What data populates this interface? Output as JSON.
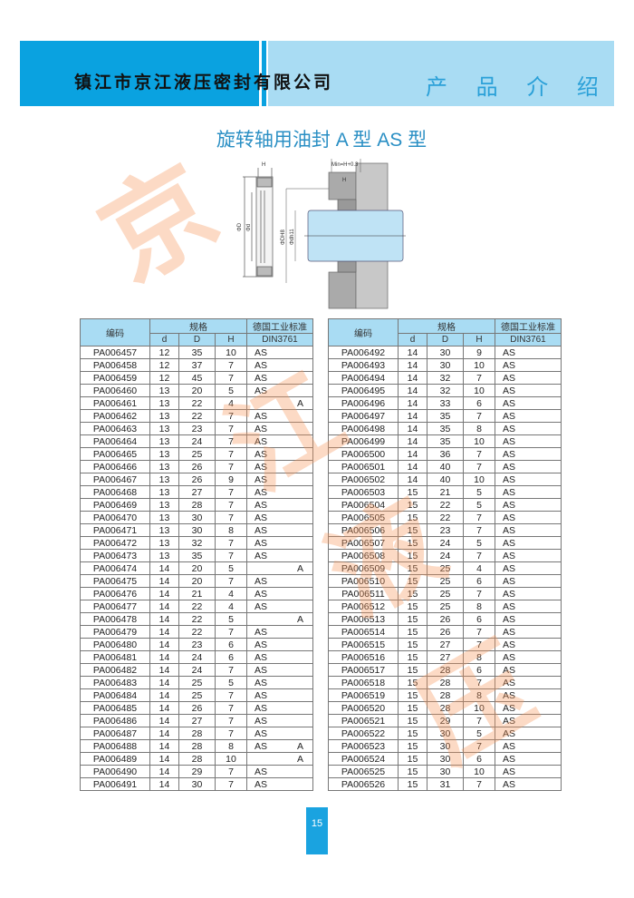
{
  "header": {
    "company": "镇江市京江液压密封有限公司",
    "section": "产 品 介 绍"
  },
  "title": "旋转轴用油封 A 型   AS 型",
  "watermark": [
    "京",
    "江",
    "液",
    "压"
  ],
  "diagram": {
    "min_label": "Min=H+0.3",
    "h_label": "H",
    "D_label": "ΦD",
    "d_label": "Φd",
    "DH8_label": "ΦDH8",
    "dh11_label": "Φdh11",
    "shaft_color": "#bfe3f5"
  },
  "table_headers": {
    "code": "编码",
    "spec": "规格",
    "d": "d",
    "D": "D",
    "H": "H",
    "std": "德国工业标准",
    "din": "DIN3761"
  },
  "left_rows": [
    [
      "PA006457",
      "12",
      "35",
      "10",
      "AS",
      ""
    ],
    [
      "PA006458",
      "12",
      "37",
      "7",
      "AS",
      ""
    ],
    [
      "PA006459",
      "12",
      "45",
      "7",
      "AS",
      ""
    ],
    [
      "PA006460",
      "13",
      "20",
      "5",
      "AS",
      ""
    ],
    [
      "PA006461",
      "13",
      "22",
      "4",
      "",
      "A"
    ],
    [
      "PA006462",
      "13",
      "22",
      "7",
      "AS",
      ""
    ],
    [
      "PA006463",
      "13",
      "23",
      "7",
      "AS",
      ""
    ],
    [
      "PA006464",
      "13",
      "24",
      "7",
      "AS",
      ""
    ],
    [
      "PA006465",
      "13",
      "25",
      "7",
      "AS",
      ""
    ],
    [
      "PA006466",
      "13",
      "26",
      "7",
      "AS",
      ""
    ],
    [
      "PA006467",
      "13",
      "26",
      "9",
      "AS",
      ""
    ],
    [
      "PA006468",
      "13",
      "27",
      "7",
      "AS",
      ""
    ],
    [
      "PA006469",
      "13",
      "28",
      "7",
      "AS",
      ""
    ],
    [
      "PA006470",
      "13",
      "30",
      "7",
      "AS",
      ""
    ],
    [
      "PA006471",
      "13",
      "30",
      "8",
      "AS",
      ""
    ],
    [
      "PA006472",
      "13",
      "32",
      "7",
      "AS",
      ""
    ],
    [
      "PA006473",
      "13",
      "35",
      "7",
      "AS",
      ""
    ],
    [
      "PA006474",
      "14",
      "20",
      "5",
      "",
      "A"
    ],
    [
      "PA006475",
      "14",
      "20",
      "7",
      "AS",
      ""
    ],
    [
      "PA006476",
      "14",
      "21",
      "4",
      "AS",
      ""
    ],
    [
      "PA006477",
      "14",
      "22",
      "4",
      "AS",
      ""
    ],
    [
      "PA006478",
      "14",
      "22",
      "5",
      "",
      "A"
    ],
    [
      "PA006479",
      "14",
      "22",
      "7",
      "AS",
      ""
    ],
    [
      "PA006480",
      "14",
      "23",
      "6",
      "AS",
      ""
    ],
    [
      "PA006481",
      "14",
      "24",
      "6",
      "AS",
      ""
    ],
    [
      "PA006482",
      "14",
      "24",
      "7",
      "AS",
      ""
    ],
    [
      "PA006483",
      "14",
      "25",
      "5",
      "AS",
      ""
    ],
    [
      "PA006484",
      "14",
      "25",
      "7",
      "AS",
      ""
    ],
    [
      "PA006485",
      "14",
      "26",
      "7",
      "AS",
      ""
    ],
    [
      "PA006486",
      "14",
      "27",
      "7",
      "AS",
      ""
    ],
    [
      "PA006487",
      "14",
      "28",
      "7",
      "AS",
      ""
    ],
    [
      "PA006488",
      "14",
      "28",
      "8",
      "AS",
      "A"
    ],
    [
      "PA006489",
      "14",
      "28",
      "10",
      "",
      "A"
    ],
    [
      "PA006490",
      "14",
      "29",
      "7",
      "AS",
      ""
    ],
    [
      "PA006491",
      "14",
      "30",
      "7",
      "AS",
      ""
    ]
  ],
  "right_rows": [
    [
      "PA006492",
      "14",
      "30",
      "9",
      "AS",
      ""
    ],
    [
      "PA006493",
      "14",
      "30",
      "10",
      "AS",
      ""
    ],
    [
      "PA006494",
      "14",
      "32",
      "7",
      "AS",
      ""
    ],
    [
      "PA006495",
      "14",
      "32",
      "10",
      "AS",
      ""
    ],
    [
      "PA006496",
      "14",
      "33",
      "6",
      "AS",
      ""
    ],
    [
      "PA006497",
      "14",
      "35",
      "7",
      "AS",
      ""
    ],
    [
      "PA006498",
      "14",
      "35",
      "8",
      "AS",
      ""
    ],
    [
      "PA006499",
      "14",
      "35",
      "10",
      "AS",
      ""
    ],
    [
      "PA006500",
      "14",
      "36",
      "7",
      "AS",
      ""
    ],
    [
      "PA006501",
      "14",
      "40",
      "7",
      "AS",
      ""
    ],
    [
      "PA006502",
      "14",
      "40",
      "10",
      "AS",
      ""
    ],
    [
      "PA006503",
      "15",
      "21",
      "5",
      "AS",
      ""
    ],
    [
      "PA006504",
      "15",
      "22",
      "5",
      "AS",
      ""
    ],
    [
      "PA006505",
      "15",
      "22",
      "7",
      "AS",
      ""
    ],
    [
      "PA006506",
      "15",
      "23",
      "7",
      "AS",
      ""
    ],
    [
      "PA006507",
      "15",
      "24",
      "5",
      "AS",
      ""
    ],
    [
      "PA006508",
      "15",
      "24",
      "7",
      "AS",
      ""
    ],
    [
      "PA006509",
      "15",
      "25",
      "4",
      "AS",
      ""
    ],
    [
      "PA006510",
      "15",
      "25",
      "6",
      "AS",
      ""
    ],
    [
      "PA006511",
      "15",
      "25",
      "7",
      "AS",
      ""
    ],
    [
      "PA006512",
      "15",
      "25",
      "8",
      "AS",
      ""
    ],
    [
      "PA006513",
      "15",
      "26",
      "6",
      "AS",
      ""
    ],
    [
      "PA006514",
      "15",
      "26",
      "7",
      "AS",
      ""
    ],
    [
      "PA006515",
      "15",
      "27",
      "7",
      "AS",
      ""
    ],
    [
      "PA006516",
      "15",
      "27",
      "8",
      "AS",
      ""
    ],
    [
      "PA006517",
      "15",
      "28",
      "6",
      "AS",
      ""
    ],
    [
      "PA006518",
      "15",
      "28",
      "7",
      "AS",
      ""
    ],
    [
      "PA006519",
      "15",
      "28",
      "8",
      "AS",
      ""
    ],
    [
      "PA006520",
      "15",
      "28",
      "10",
      "AS",
      ""
    ],
    [
      "PA006521",
      "15",
      "29",
      "7",
      "AS",
      ""
    ],
    [
      "PA006522",
      "15",
      "30",
      "5",
      "AS",
      ""
    ],
    [
      "PA006523",
      "15",
      "30",
      "7",
      "AS",
      ""
    ],
    [
      "PA006524",
      "15",
      "30",
      "6",
      "AS",
      ""
    ],
    [
      "PA006525",
      "15",
      "30",
      "10",
      "AS",
      ""
    ],
    [
      "PA006526",
      "15",
      "31",
      "7",
      "AS",
      ""
    ]
  ],
  "page_number": "15"
}
